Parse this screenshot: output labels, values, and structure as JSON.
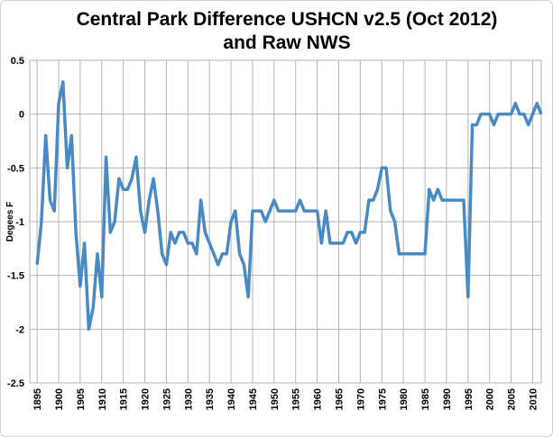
{
  "chart_data": {
    "type": "line",
    "title": [
      "Central Park Difference USHCN v2.5 (Oct 2012)",
      "and Raw NWS"
    ],
    "y_label": "Degees F",
    "x": [
      1895,
      1896,
      1897,
      1898,
      1899,
      1900,
      1901,
      1902,
      1903,
      1904,
      1905,
      1906,
      1907,
      1908,
      1909,
      1910,
      1911,
      1912,
      1913,
      1914,
      1915,
      1916,
      1917,
      1918,
      1919,
      1920,
      1921,
      1922,
      1923,
      1924,
      1925,
      1926,
      1927,
      1928,
      1929,
      1930,
      1931,
      1932,
      1933,
      1934,
      1935,
      1936,
      1937,
      1938,
      1939,
      1940,
      1941,
      1942,
      1943,
      1944,
      1945,
      1946,
      1947,
      1948,
      1949,
      1950,
      1951,
      1952,
      1953,
      1954,
      1955,
      1956,
      1957,
      1958,
      1959,
      1960,
      1961,
      1962,
      1963,
      1964,
      1965,
      1966,
      1967,
      1968,
      1969,
      1970,
      1971,
      1972,
      1973,
      1974,
      1975,
      1976,
      1977,
      1978,
      1979,
      1980,
      1981,
      1982,
      1983,
      1984,
      1985,
      1986,
      1987,
      1988,
      1989,
      1990,
      1991,
      1992,
      1993,
      1994,
      1995,
      1996,
      1997,
      1998,
      1999,
      2000,
      2001,
      2002,
      2003,
      2004,
      2005,
      2006,
      2007,
      2008,
      2009,
      2010,
      2011,
      2012
    ],
    "series": [
      {
        "name": "Difference",
        "color": "#4a8ac4",
        "values": [
          -1.4,
          -1.0,
          -0.2,
          -0.8,
          -0.9,
          0.1,
          0.3,
          -0.5,
          -0.2,
          -1.1,
          -1.6,
          -1.2,
          -2.0,
          -1.8,
          -1.3,
          -1.7,
          -0.4,
          -1.1,
          -1.0,
          -0.6,
          -0.7,
          -0.7,
          -0.6,
          -0.4,
          -0.9,
          -1.1,
          -0.8,
          -0.6,
          -0.9,
          -1.3,
          -1.4,
          -1.1,
          -1.2,
          -1.1,
          -1.1,
          -1.2,
          -1.2,
          -1.3,
          -0.8,
          -1.1,
          -1.2,
          -1.3,
          -1.4,
          -1.3,
          -1.3,
          -1.0,
          -0.9,
          -1.3,
          -1.4,
          -1.7,
          -0.9,
          -0.9,
          -0.9,
          -1.0,
          -0.9,
          -0.8,
          -0.9,
          -0.9,
          -0.9,
          -0.9,
          -0.9,
          -0.8,
          -0.9,
          -0.9,
          -0.9,
          -0.9,
          -1.2,
          -0.9,
          -1.2,
          -1.2,
          -1.2,
          -1.2,
          -1.1,
          -1.1,
          -1.2,
          -1.1,
          -1.1,
          -0.8,
          -0.8,
          -0.7,
          -0.5,
          -0.5,
          -0.9,
          -1.0,
          -1.3,
          -1.3,
          -1.3,
          -1.3,
          -1.3,
          -1.3,
          -1.3,
          -0.7,
          -0.8,
          -0.7,
          -0.8,
          -0.8,
          -0.8,
          -0.8,
          -0.8,
          -0.8,
          -1.7,
          -0.1,
          -0.1,
          0.0,
          0.0,
          0.0,
          -0.1,
          0.0,
          0.0,
          0.0,
          0.0,
          0.1,
          0.0,
          0.0,
          -0.1,
          0.0,
          0.1,
          0.0
        ]
      }
    ],
    "xlim": [
      1893.3,
      2012
    ],
    "xticks": [
      1895,
      1900,
      1905,
      1910,
      1915,
      1920,
      1925,
      1930,
      1935,
      1940,
      1945,
      1950,
      1955,
      1960,
      1965,
      1970,
      1975,
      1980,
      1985,
      1990,
      1995,
      2000,
      2005,
      2010
    ],
    "ylim": [
      -2.5,
      0.5
    ],
    "yticks": [
      0.5,
      0,
      -0.5,
      -1,
      -1.5,
      -2,
      -2.5
    ],
    "grid": true
  }
}
